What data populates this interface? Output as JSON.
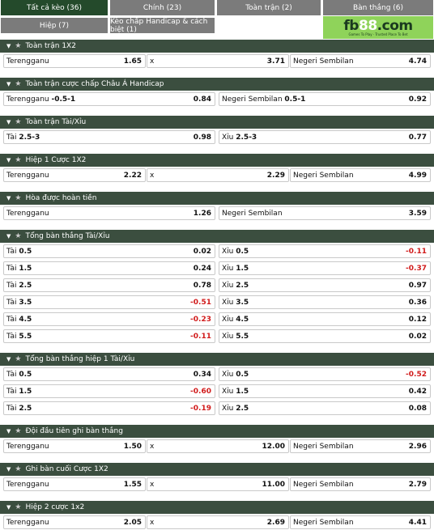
{
  "tabs": [
    {
      "label": "Tất cả kèo (36)",
      "active": true
    },
    {
      "label": "Chính (23)",
      "active": false
    },
    {
      "label": "Toàn trận (2)",
      "active": false
    },
    {
      "label": "Bàn thắng (6)",
      "active": false
    },
    {
      "label": "Hiệp (7)",
      "active": false
    },
    {
      "label": "Kèo chấp Handicap & cách biệt (1)",
      "active": false
    }
  ],
  "brand": {
    "logo_text": "fb",
    "logo_num": "88",
    "logo_suffix": ".com",
    "tagline": "Games To Play · Trusted Place To Bet"
  },
  "colors": {
    "header_bg": "#3b4e3f",
    "active_tab": "#244a2b",
    "tab_bg": "#7b7b7b",
    "negative": "#d11b1b",
    "brand_green": "#8fd35a"
  },
  "sections": [
    {
      "title": "Toàn trận 1X2",
      "layout": "three",
      "rows": [
        [
          {
            "label": "Terengganu",
            "spec": "",
            "odds": "1.65"
          },
          {
            "label": "x",
            "spec": "",
            "odds": "3.71"
          },
          {
            "label": "Negeri Sembilan",
            "spec": "",
            "odds": "4.74"
          }
        ]
      ]
    },
    {
      "title": "Toàn trận cược chấp Châu Á Handicap",
      "layout": "two",
      "rows": [
        [
          {
            "label": "Terengganu",
            "spec": "-0.5-1",
            "odds": "0.84"
          },
          {
            "label": "Negeri Sembilan",
            "spec": "0.5-1",
            "odds": "0.92"
          }
        ]
      ]
    },
    {
      "title": "Toàn trận Tài/Xỉu",
      "layout": "two",
      "rows": [
        [
          {
            "label": "Tài",
            "spec": "2.5-3",
            "odds": "0.98"
          },
          {
            "label": "Xỉu",
            "spec": "2.5-3",
            "odds": "0.77"
          }
        ]
      ]
    },
    {
      "title": "Hiệp 1 Cược 1X2",
      "layout": "three",
      "rows": [
        [
          {
            "label": "Terengganu",
            "spec": "",
            "odds": "2.22"
          },
          {
            "label": "x",
            "spec": "",
            "odds": "2.29"
          },
          {
            "label": "Negeri Sembilan",
            "spec": "",
            "odds": "4.99"
          }
        ]
      ]
    },
    {
      "title": "Hòa được hoàn tiền",
      "layout": "two",
      "rows": [
        [
          {
            "label": "Terengganu",
            "spec": "",
            "odds": "1.26"
          },
          {
            "label": "Negeri Sembilan",
            "spec": "",
            "odds": "3.59"
          }
        ]
      ]
    },
    {
      "title": "Tổng bàn thắng Tài/Xỉu",
      "layout": "two",
      "rows": [
        [
          {
            "label": "Tài",
            "spec": "0.5",
            "odds": "0.02"
          },
          {
            "label": "Xỉu",
            "spec": "0.5",
            "odds": "-0.11"
          }
        ],
        [
          {
            "label": "Tài",
            "spec": "1.5",
            "odds": "0.24"
          },
          {
            "label": "Xỉu",
            "spec": "1.5",
            "odds": "-0.37"
          }
        ],
        [
          {
            "label": "Tài",
            "spec": "2.5",
            "odds": "0.78"
          },
          {
            "label": "Xỉu",
            "spec": "2.5",
            "odds": "0.97"
          }
        ],
        [
          {
            "label": "Tài",
            "spec": "3.5",
            "odds": "-0.51"
          },
          {
            "label": "Xỉu",
            "spec": "3.5",
            "odds": "0.36"
          }
        ],
        [
          {
            "label": "Tài",
            "spec": "4.5",
            "odds": "-0.23"
          },
          {
            "label": "Xỉu",
            "spec": "4.5",
            "odds": "0.12"
          }
        ],
        [
          {
            "label": "Tài",
            "spec": "5.5",
            "odds": "-0.11"
          },
          {
            "label": "Xỉu",
            "spec": "5.5",
            "odds": "0.02"
          }
        ]
      ]
    },
    {
      "title": "Tổng bàn thắng hiệp 1 Tài/Xỉu",
      "layout": "two",
      "rows": [
        [
          {
            "label": "Tài",
            "spec": "0.5",
            "odds": "0.34"
          },
          {
            "label": "Xỉu",
            "spec": "0.5",
            "odds": "-0.52"
          }
        ],
        [
          {
            "label": "Tài",
            "spec": "1.5",
            "odds": "-0.60"
          },
          {
            "label": "Xỉu",
            "spec": "1.5",
            "odds": "0.42"
          }
        ],
        [
          {
            "label": "Tài",
            "spec": "2.5",
            "odds": "-0.19"
          },
          {
            "label": "Xỉu",
            "spec": "2.5",
            "odds": "0.08"
          }
        ]
      ]
    },
    {
      "title": "Đội đầu tiên ghi bàn thắng",
      "layout": "three",
      "rows": [
        [
          {
            "label": "Terengganu",
            "spec": "",
            "odds": "1.50"
          },
          {
            "label": "x",
            "spec": "",
            "odds": "12.00"
          },
          {
            "label": "Negeri Sembilan",
            "spec": "",
            "odds": "2.96"
          }
        ]
      ]
    },
    {
      "title": "Ghi bàn cuối Cược 1X2",
      "layout": "three",
      "rows": [
        [
          {
            "label": "Terengganu",
            "spec": "",
            "odds": "1.55"
          },
          {
            "label": "x",
            "spec": "",
            "odds": "11.00"
          },
          {
            "label": "Negeri Sembilan",
            "spec": "",
            "odds": "2.79"
          }
        ]
      ]
    },
    {
      "title": "Hiệp 2 cược 1x2",
      "layout": "three",
      "rows": [
        [
          {
            "label": "Terengganu",
            "spec": "",
            "odds": "2.05"
          },
          {
            "label": "x",
            "spec": "",
            "odds": "2.69"
          },
          {
            "label": "Negeri Sembilan",
            "spec": "",
            "odds": "4.41"
          }
        ]
      ]
    }
  ]
}
